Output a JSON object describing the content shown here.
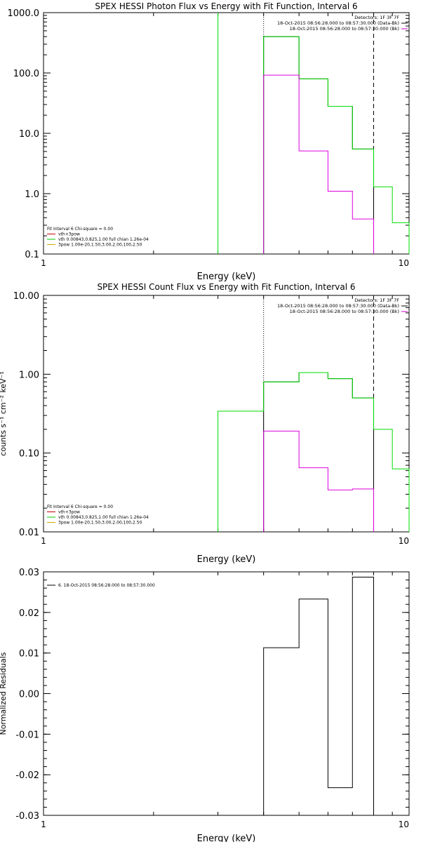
{
  "chart_data": [
    {
      "type": "line",
      "title": "SPEX HESSI Photon Flux vs Energy with Fit Function, Interval 6",
      "xlabel": "Energy (keV)",
      "ylabel": "",
      "xscale": "log",
      "yscale": "log",
      "xlim": [
        1,
        10
      ],
      "ylim": [
        0.1,
        1000
      ],
      "x_ticks": [
        1,
        10
      ],
      "x_tick_labels": [
        "1",
        "10"
      ],
      "y_ticks": [
        0.1,
        1,
        10,
        100,
        1000
      ],
      "y_tick_labels": [
        "0.1",
        "1.0",
        "10.0",
        "100.0",
        "1000.0"
      ],
      "grid": false,
      "info": [
        "Detectors: 1F 3F 7F",
        "18-Oct-2015 08:56:28.000 to 08:57:30.000 (Data-Bk)",
        "18-Oct-2015 08:56:28.000 to 08:57:30.000 (Bk)"
      ],
      "info_colors": [
        "#000000",
        "#000000",
        "#cc00cc"
      ],
      "legend_placement": "bottom-left",
      "legend": [
        {
          "label": "Fit Interval 6   Chi-square = 0.00",
          "color": ""
        },
        {
          "label": "vth+3pow",
          "color": "#cc0000"
        },
        {
          "label": "vth 0.00843,0.825,1.00  full chian 1.26e-04",
          "color": "#00cc00"
        },
        {
          "label": "3pow 1.00e-20,1.50,3.00,2.00,100,2.50",
          "color": "#ccaa00"
        }
      ],
      "vlines": [
        {
          "x": 3.0,
          "style": "solid",
          "color": "#00dd00"
        },
        {
          "x": 4.0,
          "style": "dotted",
          "color": "#000000"
        },
        {
          "x": 8.0,
          "style": "dashed",
          "color": "#000000"
        }
      ],
      "series": [
        {
          "color": "#000000",
          "edges": [
            4,
            5,
            6,
            7,
            8
          ],
          "values": [
            400,
            80,
            28,
            5.5
          ]
        },
        {
          "color": "#00dd00",
          "edges": [
            4,
            5,
            6,
            7,
            8,
            9,
            10
          ],
          "values": [
            400,
            80,
            28,
            5.5,
            1.3,
            0.33
          ]
        },
        {
          "color": "#dd00dd",
          "edges": [
            4,
            5,
            6,
            7,
            8
          ],
          "values": [
            92,
            5.1,
            1.1,
            0.38
          ]
        }
      ]
    },
    {
      "type": "line",
      "title": "SPEX HESSI Count Flux vs Energy with Fit Function, Interval 6",
      "xlabel": "Energy (keV)",
      "ylabel": "counts s⁻¹ cm⁻² keV⁻¹",
      "xscale": "log",
      "yscale": "log",
      "xlim": [
        1,
        10
      ],
      "ylim": [
        0.01,
        10
      ],
      "x_ticks": [
        1,
        10
      ],
      "x_tick_labels": [
        "1",
        "10"
      ],
      "y_ticks": [
        0.01,
        0.1,
        1,
        10
      ],
      "y_tick_labels": [
        "0.01",
        "0.10",
        "1.00",
        "10.00"
      ],
      "grid": false,
      "info": [
        "Detectors: 1F 3F 7F",
        "18-Oct-2015 08:56:28.000 to 08:57:30.000 (Data-Bk)",
        "18-Oct-2015 08:56:28.000 to 08:57:30.000 (Bk)"
      ],
      "info_colors": [
        "#000000",
        "#000000",
        "#cc00cc"
      ],
      "legend_placement": "bottom-left",
      "legend": [
        {
          "label": "Fit Interval 6   Chi-square = 0.00",
          "color": ""
        },
        {
          "label": "vth+3pow",
          "color": "#cc0000"
        },
        {
          "label": "vth 0.00843,0.825,1.00  full chian 1.26e-04",
          "color": "#00cc00"
        },
        {
          "label": "3pow 1.00e-20,1.50,3.00,2.00,100,2.50",
          "color": "#ccaa00"
        }
      ],
      "vlines": [
        {
          "x": 4.0,
          "style": "dotted",
          "color": "#000000"
        },
        {
          "x": 8.0,
          "style": "dashed",
          "color": "#000000"
        }
      ],
      "series": [
        {
          "color": "#000000",
          "edges": [
            4,
            5,
            6,
            7,
            8
          ],
          "values": [
            0.8,
            1.05,
            0.88,
            0.5
          ]
        },
        {
          "color": "#00dd00",
          "edges": [
            3,
            4,
            5,
            6,
            7,
            8,
            9,
            10
          ],
          "values": [
            0.34,
            0.8,
            1.05,
            0.88,
            0.5,
            0.2,
            0.063
          ]
        },
        {
          "color": "#dd00dd",
          "edges": [
            4,
            5,
            6,
            7,
            8
          ],
          "values": [
            0.19,
            0.065,
            0.034,
            0.035
          ]
        }
      ]
    },
    {
      "type": "line",
      "title": "",
      "xlabel": "Energy (keV)",
      "ylabel": "Normalized Residuals",
      "xscale": "log",
      "yscale": "linear",
      "xlim": [
        1,
        10
      ],
      "ylim": [
        -0.03,
        0.03
      ],
      "x_ticks": [
        1,
        10
      ],
      "x_tick_labels": [
        "1",
        "10"
      ],
      "y_ticks": [
        -0.03,
        -0.02,
        -0.01,
        0,
        0.01,
        0.02,
        0.03
      ],
      "y_tick_labels": [
        "-0.03",
        "-0.02",
        "-0.01",
        "0.00",
        "0.01",
        "0.02",
        "0.03"
      ],
      "grid": false,
      "legend_placement": "top-left",
      "legend": [
        {
          "label": "6. 18-Oct-2015 08:56:28.000 to 08:57:30.000",
          "color": "#000000"
        }
      ],
      "vlines": [],
      "series": [
        {
          "color": "#000000",
          "edges": [
            4,
            5,
            6,
            7,
            8
          ],
          "values": [
            0.0113,
            0.0233,
            -0.0232,
            0.0287
          ]
        }
      ]
    }
  ]
}
